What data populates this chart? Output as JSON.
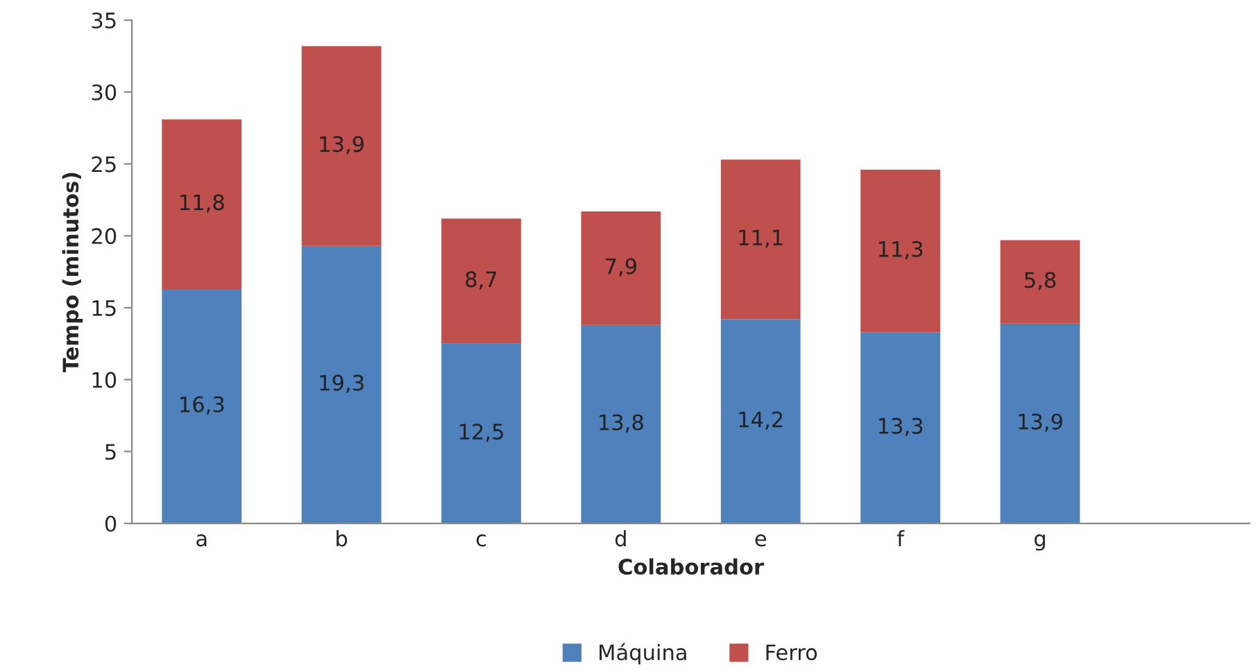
{
  "chart_data": {
    "type": "bar",
    "stacked": true,
    "xlabel": "Colaborador",
    "ylabel": "Tempo (minutos)",
    "categories": [
      "a",
      "b",
      "c",
      "d",
      "e",
      "f",
      "g",
      null
    ],
    "series": [
      {
        "name": "Máquina",
        "color": "#4f81bd",
        "values": [
          16.3,
          19.3,
          12.5,
          13.8,
          14.2,
          13.3,
          13.9,
          null
        ],
        "value_labels": [
          "16,3",
          "19,3",
          "12,5",
          "13,8",
          "14,2",
          "13,3",
          "13,9",
          null
        ]
      },
      {
        "name": "Ferro",
        "color": "#c0504d",
        "values": [
          11.8,
          13.9,
          8.7,
          7.9,
          11.1,
          11.3,
          5.8,
          null
        ],
        "value_labels": [
          "11,8",
          "13,9",
          "8,7",
          "7,9",
          "11,1",
          "11,3",
          "5,8",
          null
        ]
      }
    ],
    "ylim": [
      0,
      35
    ],
    "yticks": [
      0,
      5,
      10,
      15,
      20,
      25,
      30,
      35
    ],
    "grid": false,
    "legend": "bottom"
  }
}
